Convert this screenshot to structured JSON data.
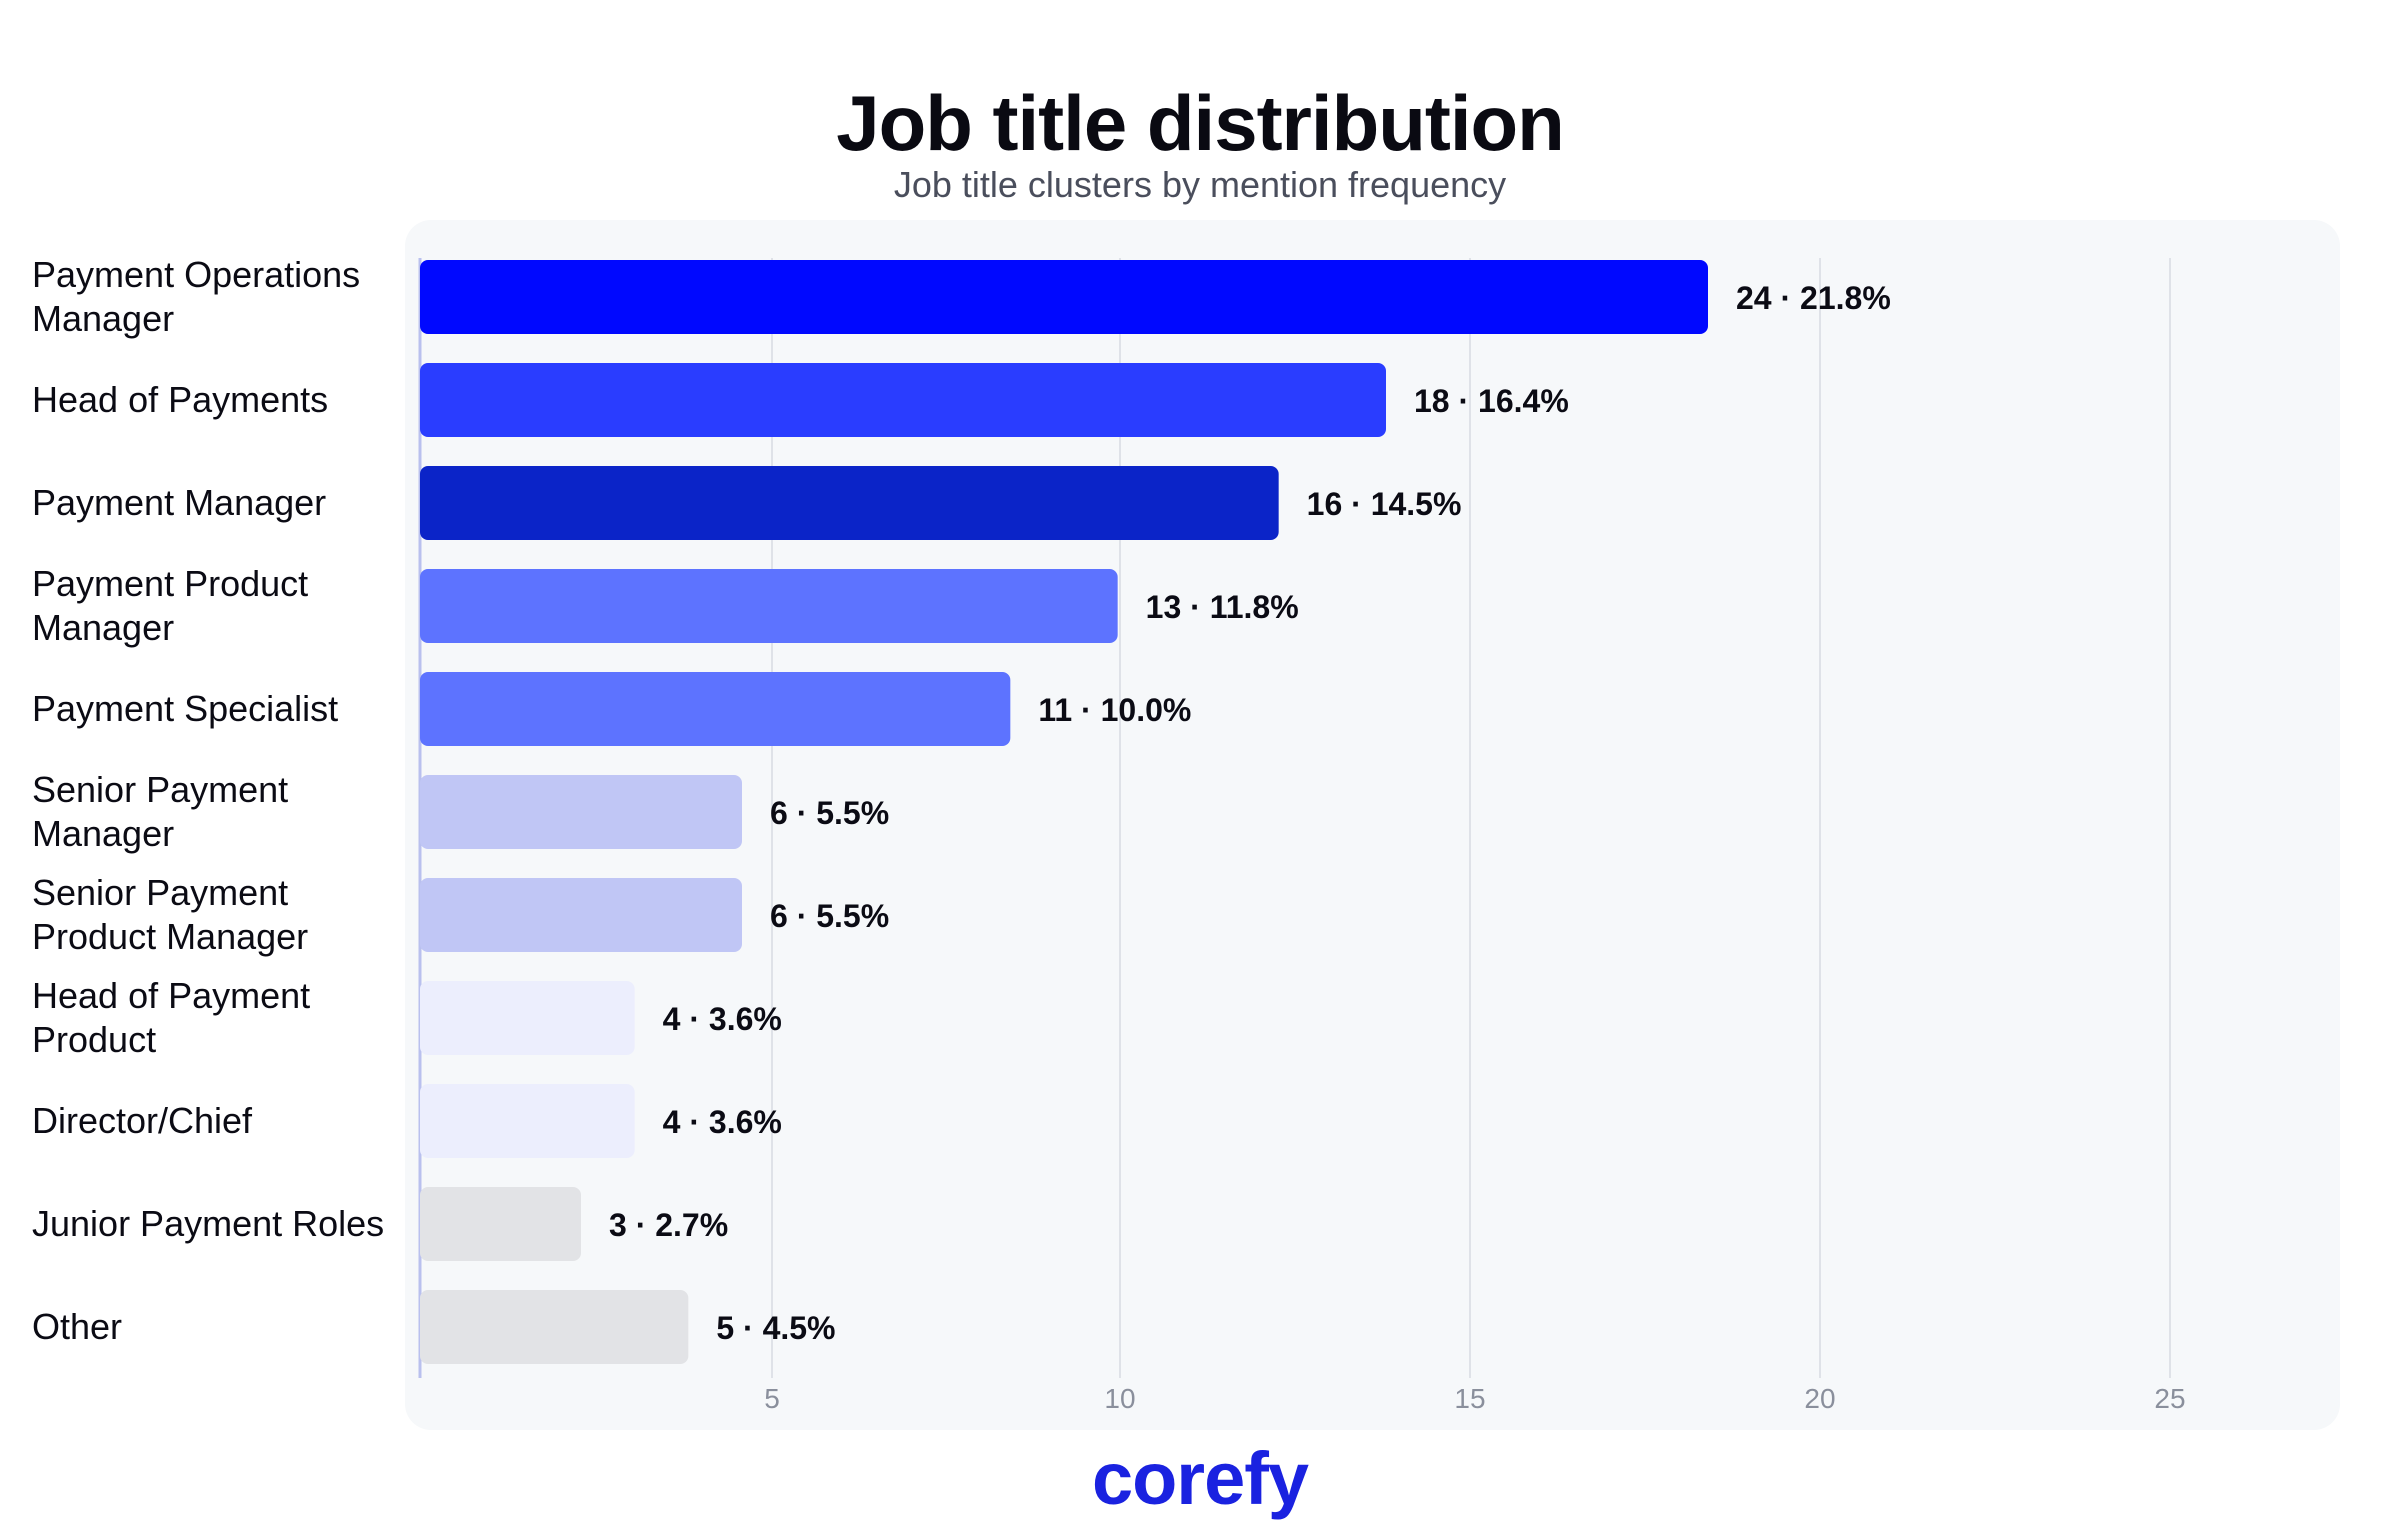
{
  "title": "Job title distribution",
  "subtitle": "Job title clusters by mention frequency",
  "brand": "corefy",
  "chart_data": {
    "type": "bar",
    "orientation": "horizontal",
    "title": "Job title distribution",
    "subtitle": "Job title clusters by mention frequency",
    "categories": [
      "Payment Operations Manager",
      "Head of Payments",
      "Payment Manager",
      "Payment Product Manager",
      "Payment Specialist",
      "Senior Payment Manager",
      "Senior Payment Product Manager",
      "Head of Payment Product",
      "Director/Chief",
      "Junior Payment Roles",
      "Other"
    ],
    "values": [
      24,
      18,
      16,
      13,
      11,
      6,
      6,
      4,
      4,
      3,
      5
    ],
    "percentages": [
      "21.8%",
      "16.4%",
      "14.5%",
      "11.8%",
      "10.0%",
      "5.5%",
      "5.5%",
      "3.6%",
      "3.6%",
      "2.7%",
      "4.5%"
    ],
    "data_labels": [
      "24 · 21.8%",
      "18 · 16.4%",
      "16 · 14.5%",
      "13 · 11.8%",
      "11 · 10.0%",
      "6 · 5.5%",
      "6 · 5.5%",
      "4 · 3.6%",
      "4 · 3.6%",
      "3 · 2.7%",
      "5 · 4.5%"
    ],
    "colors": [
      "#0008ff",
      "#2a3dff",
      "#0b24c8",
      "#5d73ff",
      "#5d73ff",
      "#c0c6f5",
      "#c0c6f5",
      "#eceefd",
      "#eceefd",
      "#e2e3e6",
      "#e2e3e6"
    ],
    "xticks": [
      5,
      10,
      15,
      20,
      25
    ],
    "xlim": [
      0,
      27.5
    ],
    "xlabel": "",
    "ylabel": "",
    "grid": true,
    "legend": "none",
    "background": "#f6f8fa",
    "gridline_color": "#dfe2e8"
  }
}
